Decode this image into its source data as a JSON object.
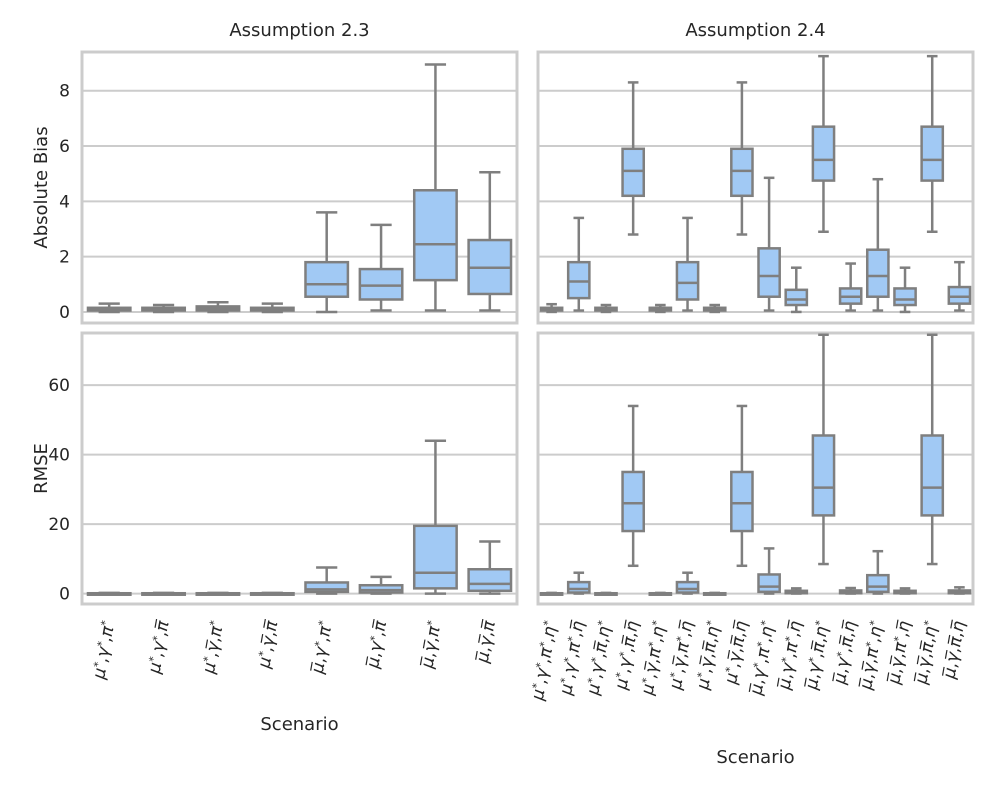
{
  "chart_data": [
    {
      "type": "box",
      "title": "Assumption 2.3",
      "ylabel": "Absolute Bias",
      "xlabel": "",
      "ylim": [
        -0.4,
        9.4
      ],
      "yticks": [
        "0",
        "2",
        "4",
        "6",
        "8"
      ],
      "categories": [
        "μ*,γ*,π*",
        "μ*,γ*,π̅",
        "μ*,γ̅,π*",
        "μ*,γ̅,π̅",
        "μ̅,γ*,π*",
        "μ̅,γ*,π̅",
        "μ̅,γ̅,π*",
        "μ̅,γ̅,π̅"
      ],
      "boxes": [
        {
          "lo": 0,
          "q1": 0.05,
          "med": 0.1,
          "q3": 0.15,
          "hi": 0.3
        },
        {
          "lo": 0,
          "q1": 0.05,
          "med": 0.1,
          "q3": 0.15,
          "hi": 0.25
        },
        {
          "lo": 0,
          "q1": 0.05,
          "med": 0.12,
          "q3": 0.2,
          "hi": 0.35
        },
        {
          "lo": 0,
          "q1": 0.05,
          "med": 0.1,
          "q3": 0.15,
          "hi": 0.3
        },
        {
          "lo": 0,
          "q1": 0.55,
          "med": 1.0,
          "q3": 1.8,
          "hi": 3.6
        },
        {
          "lo": 0.05,
          "q1": 0.45,
          "med": 0.95,
          "q3": 1.55,
          "hi": 3.15
        },
        {
          "lo": 0.05,
          "q1": 1.15,
          "med": 2.45,
          "q3": 4.4,
          "hi": 8.95
        },
        {
          "lo": 0.05,
          "q1": 0.65,
          "med": 1.6,
          "q3": 2.6,
          "hi": 5.05
        }
      ]
    },
    {
      "type": "box",
      "title": "Assumption 2.4",
      "ylabel": "",
      "xlabel": "",
      "ylim": [
        -0.4,
        9.4
      ],
      "categories": [
        "μ*,γ*,π*,η*",
        "μ*,γ*,π*,η̅",
        "μ*,γ*,π̅,η*",
        "μ*,γ*,π̅,η̅",
        "μ*,γ̅,π*,η*",
        "μ*,γ̅,π*,η̅",
        "μ*,γ̅,π̅,η*",
        "μ*,γ̅,π̅,η̅",
        "μ̅,γ*,π*,η*",
        "μ̅,γ*,π*,η̅",
        "μ̅,γ*,π̅,η*",
        "μ̅,γ*,π̅,η̅",
        "μ̅,γ̅,π*,η*",
        "μ̅,γ̅,π*,η̅",
        "μ̅,γ̅,π̅,η*",
        "μ̅,γ̅,π̅,η̅"
      ],
      "boxes": [
        {
          "lo": 0,
          "q1": 0.05,
          "med": 0.1,
          "q3": 0.15,
          "hi": 0.28
        },
        {
          "lo": 0.05,
          "q1": 0.5,
          "med": 1.1,
          "q3": 1.8,
          "hi": 3.4
        },
        {
          "lo": 0,
          "q1": 0.05,
          "med": 0.1,
          "q3": 0.15,
          "hi": 0.25
        },
        {
          "lo": 2.8,
          "q1": 4.2,
          "med": 5.1,
          "q3": 5.9,
          "hi": 8.3
        },
        {
          "lo": 0,
          "q1": 0.05,
          "med": 0.1,
          "q3": 0.15,
          "hi": 0.25
        },
        {
          "lo": 0.05,
          "q1": 0.45,
          "med": 1.05,
          "q3": 1.8,
          "hi": 3.4
        },
        {
          "lo": 0,
          "q1": 0.05,
          "med": 0.1,
          "q3": 0.15,
          "hi": 0.25
        },
        {
          "lo": 2.8,
          "q1": 4.2,
          "med": 5.1,
          "q3": 5.9,
          "hi": 8.3
        },
        {
          "lo": 0.05,
          "q1": 0.55,
          "med": 1.3,
          "q3": 2.3,
          "hi": 4.85
        },
        {
          "lo": 0,
          "q1": 0.25,
          "med": 0.45,
          "q3": 0.8,
          "hi": 1.6
        },
        {
          "lo": 2.9,
          "q1": 4.75,
          "med": 5.5,
          "q3": 6.7,
          "hi": 9.25
        },
        {
          "lo": 0.05,
          "q1": 0.3,
          "med": 0.55,
          "q3": 0.85,
          "hi": 1.75
        },
        {
          "lo": 0.05,
          "q1": 0.55,
          "med": 1.3,
          "q3": 2.25,
          "hi": 4.8
        },
        {
          "lo": 0,
          "q1": 0.25,
          "med": 0.45,
          "q3": 0.85,
          "hi": 1.6
        },
        {
          "lo": 2.9,
          "q1": 4.75,
          "med": 5.5,
          "q3": 6.7,
          "hi": 9.25
        },
        {
          "lo": 0.05,
          "q1": 0.3,
          "med": 0.55,
          "q3": 0.9,
          "hi": 1.8
        }
      ]
    },
    {
      "type": "box",
      "title": "",
      "ylabel": "RMSE",
      "xlabel": "Scenario",
      "ylim": [
        -3,
        75
      ],
      "yticks": [
        "0",
        "20",
        "40",
        "60"
      ],
      "categories": [
        "μ*,γ*,π*",
        "μ*,γ*,π̅",
        "μ*,γ̅,π*",
        "μ*,γ̅,π̅",
        "μ̅,γ*,π*",
        "μ̅,γ*,π̅",
        "μ̅,γ̅,π*",
        "μ̅,γ̅,π̅"
      ],
      "boxes": [
        {
          "lo": 0,
          "q1": 0,
          "med": 0.05,
          "q3": 0.1,
          "hi": 0.2
        },
        {
          "lo": 0,
          "q1": 0,
          "med": 0.05,
          "q3": 0.1,
          "hi": 0.2
        },
        {
          "lo": 0,
          "q1": 0,
          "med": 0.05,
          "q3": 0.1,
          "hi": 0.2
        },
        {
          "lo": 0,
          "q1": 0,
          "med": 0.05,
          "q3": 0.1,
          "hi": 0.2
        },
        {
          "lo": 0,
          "q1": 0.5,
          "med": 1.2,
          "q3": 3.2,
          "hi": 7.5
        },
        {
          "lo": 0,
          "q1": 0.3,
          "med": 1.0,
          "q3": 2.4,
          "hi": 4.8
        },
        {
          "lo": 0,
          "q1": 1.5,
          "med": 6.0,
          "q3": 19.5,
          "hi": 44.0
        },
        {
          "lo": 0,
          "q1": 0.8,
          "med": 2.8,
          "q3": 7.0,
          "hi": 15.0
        }
      ]
    },
    {
      "type": "box",
      "title": "",
      "ylabel": "",
      "xlabel": "Scenario",
      "ylim": [
        -3,
        75
      ],
      "categories": [
        "μ*,γ*,π*,η*",
        "μ*,γ*,π*,η̅",
        "μ*,γ*,π̅,η*",
        "μ*,γ*,π̅,η̅",
        "μ*,γ̅,π*,η*",
        "μ*,γ̅,π*,η̅",
        "μ*,γ̅,π̅,η*",
        "μ*,γ̅,π̅,η̅",
        "μ̅,γ*,π*,η*",
        "μ̅,γ*,π*,η̅",
        "μ̅,γ*,π̅,η*",
        "μ̅,γ*,π̅,η̅",
        "μ̅,γ̅,π*,η*",
        "μ̅,γ̅,π*,η̅",
        "μ̅,γ̅,π̅,η*",
        "μ̅,γ̅,π̅,η̅"
      ],
      "boxes": [
        {
          "lo": 0,
          "q1": 0,
          "med": 0.05,
          "q3": 0.1,
          "hi": 0.2
        },
        {
          "lo": 0,
          "q1": 0.3,
          "med": 1.3,
          "q3": 3.3,
          "hi": 6.0
        },
        {
          "lo": 0,
          "q1": 0,
          "med": 0.05,
          "q3": 0.1,
          "hi": 0.2
        },
        {
          "lo": 8,
          "q1": 18,
          "med": 26,
          "q3": 35,
          "hi": 54
        },
        {
          "lo": 0,
          "q1": 0,
          "med": 0.05,
          "q3": 0.1,
          "hi": 0.2
        },
        {
          "lo": 0,
          "q1": 0.3,
          "med": 1.3,
          "q3": 3.3,
          "hi": 6.0
        },
        {
          "lo": 0,
          "q1": 0,
          "med": 0.05,
          "q3": 0.1,
          "hi": 0.2
        },
        {
          "lo": 8,
          "q1": 18,
          "med": 26,
          "q3": 35,
          "hi": 54
        },
        {
          "lo": 0,
          "q1": 0.5,
          "med": 2.0,
          "q3": 5.5,
          "hi": 13
        },
        {
          "lo": 0,
          "q1": 0.1,
          "med": 0.4,
          "q3": 0.8,
          "hi": 1.5
        },
        {
          "lo": 8.5,
          "q1": 22.5,
          "med": 30.5,
          "q3": 45.5,
          "hi": 74.5
        },
        {
          "lo": 0,
          "q1": 0.1,
          "med": 0.5,
          "q3": 0.9,
          "hi": 1.6
        },
        {
          "lo": 0,
          "q1": 0.5,
          "med": 2.0,
          "q3": 5.3,
          "hi": 12.2
        },
        {
          "lo": 0,
          "q1": 0.1,
          "med": 0.4,
          "q3": 0.8,
          "hi": 1.5
        },
        {
          "lo": 8.5,
          "q1": 22.5,
          "med": 30.5,
          "q3": 45.5,
          "hi": 74.5
        },
        {
          "lo": 0,
          "q1": 0.1,
          "med": 0.5,
          "q3": 0.9,
          "hi": 1.8
        }
      ]
    }
  ],
  "colors": {
    "box_fill": "#a1c9f4",
    "box_line": "#7f7f7f",
    "grid": "#cccccc",
    "text": "#262626"
  }
}
